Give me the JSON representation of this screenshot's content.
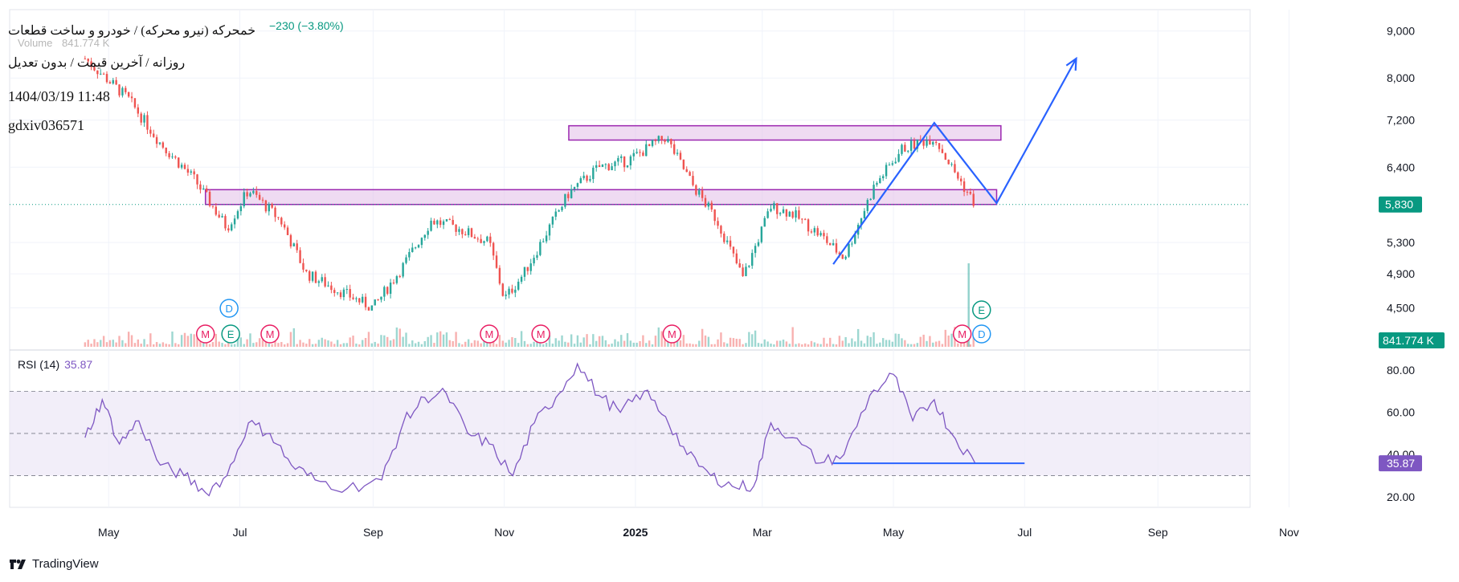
{
  "header": {
    "symbol_title": "خمحرکه (نیرو محرکه) / خودرو و ساخت قطعات",
    "subtitle": "روزانه / آخرین قیمت / بدون تعدیل",
    "timestamp": "1404/03/19 11:48",
    "user": "gdxiv036571",
    "change_text": "−230 (−3.80%)",
    "volume_label": "Volume",
    "volume_value": "841.774 K"
  },
  "rsi_header": {
    "label": "RSI (14)",
    "value": "35.87"
  },
  "brand": {
    "name": "TradingView"
  },
  "colors": {
    "up": "#26a69a",
    "down": "#ef5350",
    "rsi": "#7e57c2",
    "zone_stroke": "#9c27b0",
    "zone_fill": "#e1bee7",
    "arrow": "#2962ff",
    "last_price_bg": "#089981"
  },
  "chart_data": [
    {
      "type": "candlestick",
      "title": "خمحرکه (نیرو محرکه) / خودرو و ساخت قطعات",
      "x_ticks": [
        "May",
        "Jul",
        "Sep",
        "Nov",
        "2025",
        "Mar",
        "May",
        "Jul",
        "Sep",
        "Nov"
      ],
      "y_scale": "log",
      "y_ticks": [
        4500,
        4900,
        5300,
        5830,
        6400,
        7200,
        8000,
        9000
      ],
      "y_tick_labels": [
        "4,500",
        "4,900",
        "5,300",
        "5,830",
        "6,400",
        "7,200",
        "8,000",
        "9,000"
      ],
      "ylim": [
        4250,
        9400
      ],
      "last_price": 5830,
      "last_price_label": "5,830",
      "volume_last_label": "841.774 K",
      "price_path": [
        {
          "date": "2024-04-20",
          "close": 8400
        },
        {
          "date": "2024-05-10",
          "close": 7600
        },
        {
          "date": "2024-05-25",
          "close": 6800
        },
        {
          "date": "2024-06-10",
          "close": 6200
        },
        {
          "date": "2024-06-25",
          "close": 5500
        },
        {
          "date": "2024-07-05",
          "close": 6050
        },
        {
          "date": "2024-07-20",
          "close": 5600
        },
        {
          "date": "2024-08-01",
          "close": 4900
        },
        {
          "date": "2024-08-20",
          "close": 4650
        },
        {
          "date": "2024-09-01",
          "close": 4500
        },
        {
          "date": "2024-09-15",
          "close": 5000
        },
        {
          "date": "2024-09-28",
          "close": 5600
        },
        {
          "date": "2024-10-10",
          "close": 5500
        },
        {
          "date": "2024-10-25",
          "close": 5300
        },
        {
          "date": "2024-11-01",
          "close": 4600
        },
        {
          "date": "2024-11-10",
          "close": 4900
        },
        {
          "date": "2024-11-20",
          "close": 5400
        },
        {
          "date": "2024-12-01",
          "close": 6000
        },
        {
          "date": "2024-12-15",
          "close": 6400
        },
        {
          "date": "2024-12-28",
          "close": 6500
        },
        {
          "date": "2025-01-15",
          "close": 6900
        },
        {
          "date": "2025-01-28",
          "close": 6100
        },
        {
          "date": "2025-02-08",
          "close": 5600
        },
        {
          "date": "2025-02-20",
          "close": 4850
        },
        {
          "date": "2025-03-05",
          "close": 5800
        },
        {
          "date": "2025-03-15",
          "close": 5700
        },
        {
          "date": "2025-03-28",
          "close": 5400
        },
        {
          "date": "2025-04-08",
          "close": 5100
        },
        {
          "date": "2025-04-22",
          "close": 6100
        },
        {
          "date": "2025-05-05",
          "close": 6700
        },
        {
          "date": "2025-05-20",
          "close": 6900
        },
        {
          "date": "2025-05-28",
          "close": 6400
        },
        {
          "date": "2025-06-08",
          "close": 5830
        }
      ],
      "zones": [
        {
          "from": "2024-06-15",
          "to": "2025-06-18",
          "low": 5830,
          "high": 6050
        },
        {
          "from": "2024-12-01",
          "to": "2025-06-20",
          "low": 6850,
          "high": 7100
        }
      ],
      "projection": [
        {
          "date": "2025-04-03",
          "price": 5020
        },
        {
          "date": "2025-05-20",
          "price": 7150
        },
        {
          "date": "2025-06-18",
          "price": 5850
        },
        {
          "date": "2025-07-25",
          "price": 8400
        }
      ],
      "events": [
        {
          "date": "2024-06-15",
          "label": "M"
        },
        {
          "date": "2024-06-26",
          "label": "D"
        },
        {
          "date": "2024-06-26",
          "label": "E"
        },
        {
          "date": "2024-07-15",
          "label": "M"
        },
        {
          "date": "2024-10-25",
          "label": "M"
        },
        {
          "date": "2024-11-18",
          "label": "M"
        },
        {
          "date": "2025-01-18",
          "label": "M"
        },
        {
          "date": "2025-06-02",
          "label": "M"
        },
        {
          "date": "2025-06-11",
          "label": "E"
        },
        {
          "date": "2025-06-11",
          "label": "D"
        }
      ]
    },
    {
      "type": "line",
      "title": "RSI (14)",
      "y_ticks": [
        20,
        35.87,
        40,
        80
      ],
      "y_tick_labels": [
        "20.00",
        "35.87",
        "40.00",
        "80.00"
      ],
      "visible_tick_labels": [
        "80.00",
        "60.00",
        "40.00",
        "20.00"
      ],
      "reference_levels": [
        30,
        50,
        70
      ],
      "ylim": [
        15,
        88
      ],
      "last_value": 35.87,
      "last_label": "35.87",
      "x": [
        "2024-04-20",
        "2024-04-28",
        "2024-05-06",
        "2024-05-15",
        "2024-05-25",
        "2024-06-05",
        "2024-06-15",
        "2024-06-25",
        "2024-07-05",
        "2024-07-15",
        "2024-07-25",
        "2024-08-05",
        "2024-08-20",
        "2024-09-05",
        "2024-09-15",
        "2024-09-25",
        "2024-10-05",
        "2024-10-15",
        "2024-10-25",
        "2024-11-05",
        "2024-11-15",
        "2024-11-25",
        "2024-12-05",
        "2024-12-15",
        "2024-12-25",
        "2025-01-05",
        "2025-01-15",
        "2025-01-25",
        "2025-02-05",
        "2025-02-15",
        "2025-02-25",
        "2025-03-05",
        "2025-03-15",
        "2025-03-28",
        "2025-04-08",
        "2025-04-20",
        "2025-05-01",
        "2025-05-10",
        "2025-05-20",
        "2025-05-28",
        "2025-06-08"
      ],
      "values": [
        48,
        66,
        45,
        56,
        35,
        30,
        22,
        30,
        55,
        50,
        35,
        28,
        24,
        28,
        55,
        67,
        69,
        50,
        45,
        30,
        55,
        67,
        83,
        68,
        60,
        70,
        58,
        40,
        30,
        25,
        25,
        55,
        48,
        36,
        40,
        68,
        78,
        56,
        66,
        50,
        35.87
      ],
      "support_line": {
        "from": "2025-04-03",
        "to": "2025-07-01",
        "value": 35.87
      }
    }
  ]
}
